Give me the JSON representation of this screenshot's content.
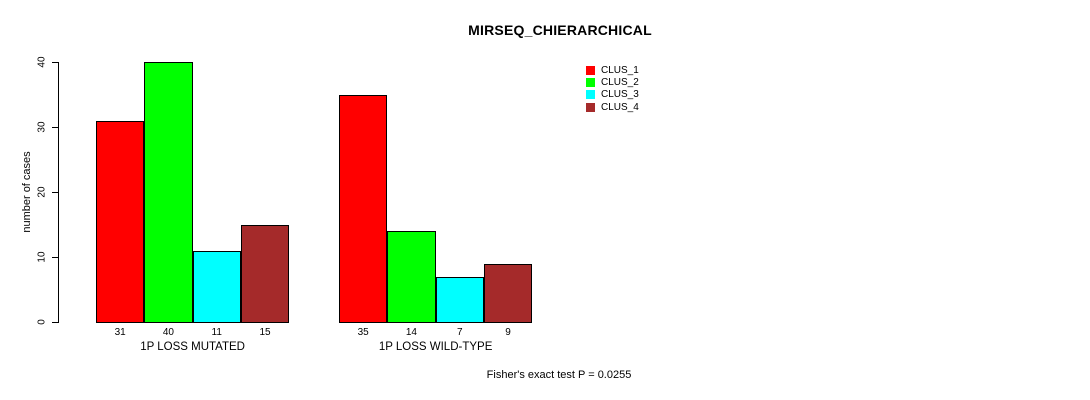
{
  "header": {
    "title": "MIRSEQ_CHIERARCHICAL"
  },
  "footer": {
    "note": "Fisher's exact test P = 0.0255"
  },
  "colors": {
    "background": "#ffffff",
    "axis": "#000000",
    "text": "#000000",
    "clus_1": "#ff0000",
    "clus_2": "#00ff00",
    "clus_3": "#00ffff",
    "clus_4": "#a52a2a"
  },
  "chart_data": {
    "type": "bar",
    "title": "MIRSEQ_CHIERARCHICAL",
    "xlabel": "",
    "ylabel": "number of cases",
    "ylim": [
      0,
      40
    ],
    "yticks": [
      0,
      10,
      20,
      30,
      40
    ],
    "grid": false,
    "legend_position": "top-right",
    "categories": [
      "1P LOSS MUTATED",
      "1P LOSS WILD-TYPE"
    ],
    "series": [
      {
        "name": "CLUS_1",
        "color": "#ff0000",
        "values": [
          31,
          35
        ]
      },
      {
        "name": "CLUS_2",
        "color": "#00ff00",
        "values": [
          40,
          14
        ]
      },
      {
        "name": "CLUS_3",
        "color": "#00ffff",
        "values": [
          11,
          7
        ]
      },
      {
        "name": "CLUS_4",
        "color": "#a52a2a",
        "values": [
          15,
          9
        ]
      }
    ],
    "bar_value_labels": [
      [
        31,
        40,
        11,
        15
      ],
      [
        35,
        14,
        7,
        9
      ]
    ],
    "annotation": "Fisher's exact test P = 0.0255"
  }
}
